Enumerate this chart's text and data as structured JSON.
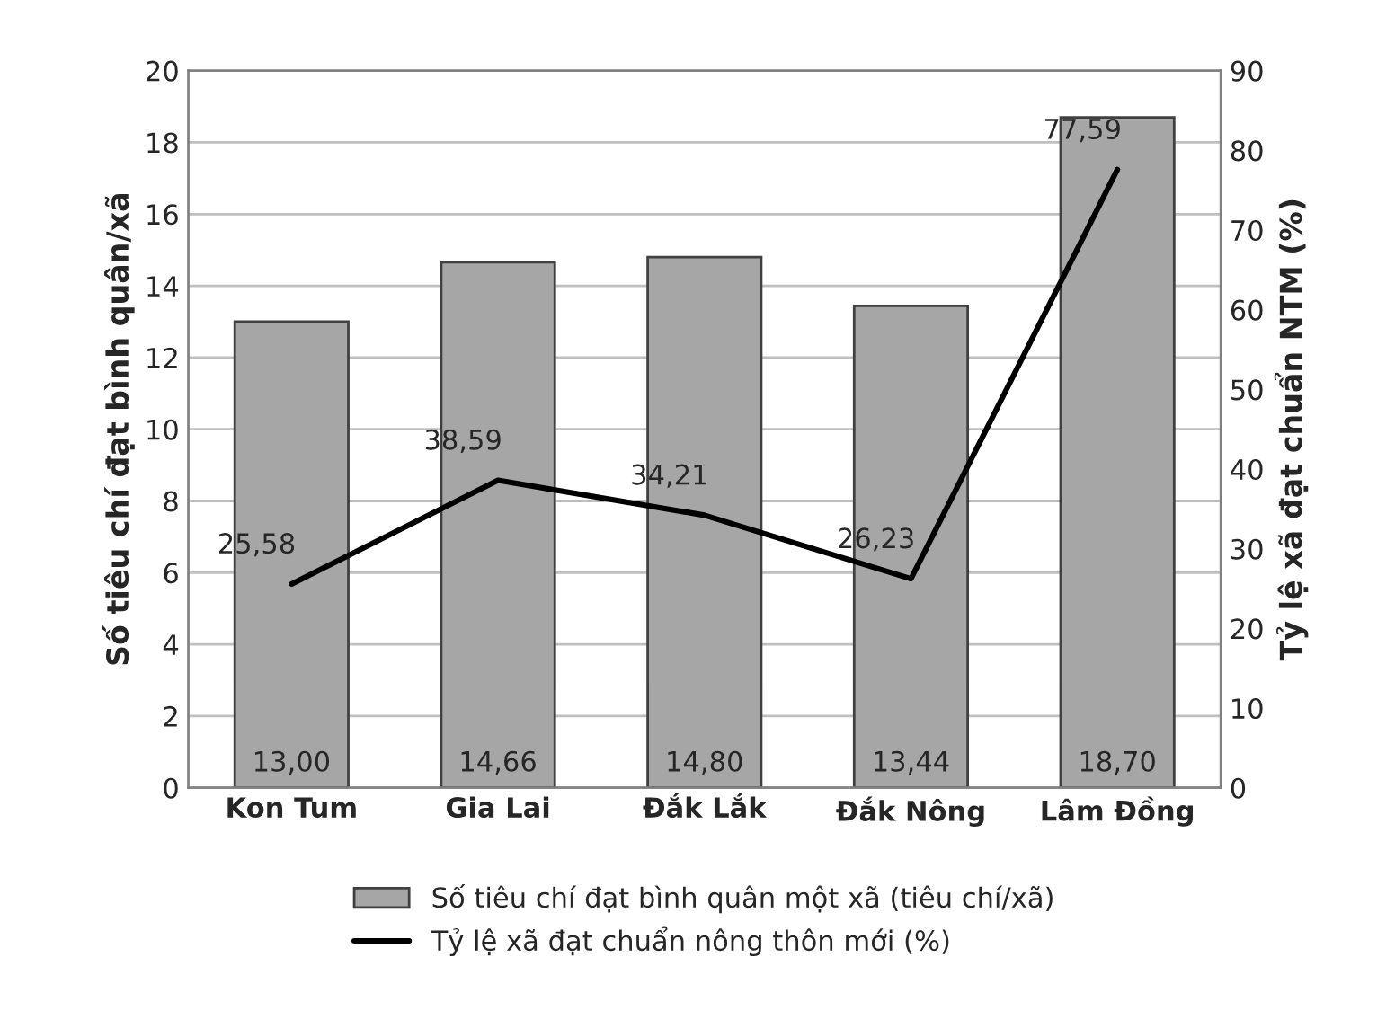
{
  "chart_data": {
    "type": "bar",
    "categories": [
      "Kon Tum",
      "Gia Lai",
      "Đắk Lắk",
      "Đắk Nông",
      "Lâm Đồng"
    ],
    "ylabel": "Số tiêu chí đạt bình quân/xã",
    "y2label": "Tỷ lệ xã đạt chuẩn NTM (%)",
    "ylim": [
      0,
      20
    ],
    "yticks": [
      0,
      2,
      4,
      6,
      8,
      10,
      12,
      14,
      16,
      18,
      20
    ],
    "y2lim": [
      0,
      90
    ],
    "y2ticks": [
      0,
      10,
      20,
      30,
      40,
      50,
      60,
      70,
      80,
      90
    ],
    "grid": "y",
    "legend": "bottom",
    "series": [
      {
        "name": "Số tiêu chí đạt bình quân một xã (tiêu chí/xã)",
        "color": "#a6a6a6",
        "values": [
          13.0,
          14.66,
          14.8,
          13.44,
          18.7
        ],
        "value_labels": [
          "13,00",
          "14,66",
          "14,80",
          "13,44",
          "18,70"
        ]
      },
      {
        "name": "Tỷ lệ xã đạt chuẩn nông thôn mới (%)",
        "type": "line",
        "axis": "y2",
        "color": "#000000",
        "values": [
          25.58,
          38.59,
          34.21,
          26.23,
          77.59
        ],
        "value_labels": [
          "25,58",
          "38,59",
          "34,21",
          "26,23",
          "77,59"
        ]
      }
    ]
  }
}
